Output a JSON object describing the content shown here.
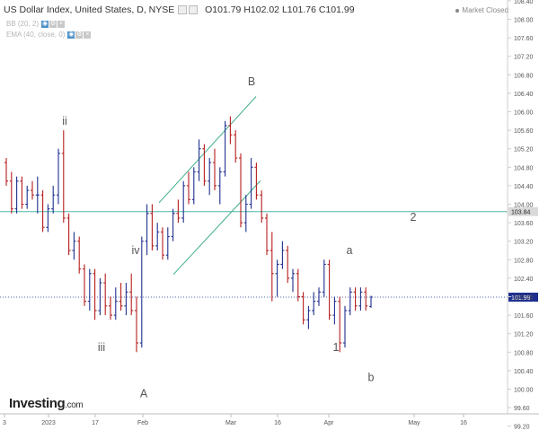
{
  "header": {
    "symbol": "US Dollar Index, United States, D, NYSE",
    "open_label": "O",
    "open": "101.79",
    "high_label": "H",
    "high": "102.02",
    "low_label": "L",
    "low": "101.76",
    "close_label": "C",
    "close": "101.99",
    "indicator_1": "BB (20, 2)",
    "indicator_2": "EMA (40, close, 0)",
    "market_status": "Market Closed"
  },
  "branding": {
    "logo_main": "Investing",
    "logo_suffix": ".com"
  },
  "colors": {
    "up_bar": "#1f2f8f",
    "down_bar": "#b71c1c",
    "channel": "#3fae8a",
    "hline": "#4fb7a8",
    "dotline": "#1f2f8f"
  },
  "chart_data": {
    "type": "ohlc-bar",
    "ylim": [
      99.0,
      109.1
    ],
    "y_ticks": [
      "99.20",
      "99.60",
      "100.00",
      "100.40",
      "100.80",
      "101.20",
      "101.60",
      "102.00",
      "102.40",
      "102.80",
      "103.20",
      "103.60",
      "104.00",
      "104.40",
      "104.80",
      "105.20",
      "105.60",
      "106.00",
      "106.40",
      "106.80",
      "107.20",
      "107.60",
      "108.00",
      "108.40",
      "108.80"
    ],
    "x_ticks": [
      "3",
      "2023",
      "17",
      "Feb",
      "Mar",
      "16",
      "Apr",
      "May",
      "16"
    ],
    "horizontal_level": {
      "value": 103.84,
      "label": "103.84"
    },
    "last_price": {
      "value": 101.99,
      "label": "101.99"
    },
    "wave_labels": [
      "ii",
      "iii",
      "iv",
      "A",
      "B",
      "1",
      "a",
      "b",
      "2"
    ],
    "channel": true,
    "bars": [
      [
        104.9,
        105.0,
        104.4,
        104.5
      ],
      [
        104.5,
        104.7,
        103.8,
        103.9
      ],
      [
        103.9,
        104.6,
        103.8,
        104.5
      ],
      [
        104.5,
        104.6,
        103.9,
        104.0
      ],
      [
        104.0,
        104.4,
        103.9,
        104.3
      ],
      [
        104.3,
        104.5,
        104.1,
        104.2
      ],
      [
        104.2,
        104.6,
        103.8,
        104.2
      ],
      [
        104.2,
        104.3,
        103.4,
        103.5
      ],
      [
        103.5,
        104.0,
        103.4,
        103.9
      ],
      [
        103.9,
        104.4,
        103.8,
        104.2
      ],
      [
        104.2,
        105.2,
        104.0,
        105.1
      ],
      [
        105.1,
        105.6,
        103.6,
        103.7
      ],
      [
        103.7,
        103.8,
        102.9,
        103.0
      ],
      [
        103.0,
        103.4,
        102.8,
        103.2
      ],
      [
        103.2,
        103.3,
        102.5,
        102.6
      ],
      [
        102.6,
        102.7,
        101.8,
        101.9
      ],
      [
        101.9,
        102.6,
        101.7,
        102.5
      ],
      [
        102.5,
        102.6,
        101.5,
        101.7
      ],
      [
        101.7,
        102.4,
        101.6,
        102.3
      ],
      [
        102.3,
        102.5,
        101.6,
        101.8
      ],
      [
        101.8,
        102.0,
        101.5,
        101.6
      ],
      [
        101.6,
        102.2,
        101.5,
        101.9
      ],
      [
        101.9,
        102.3,
        101.7,
        101.8
      ],
      [
        101.8,
        102.3,
        101.6,
        102.1
      ],
      [
        102.1,
        102.5,
        101.6,
        101.7
      ],
      [
        101.7,
        102.0,
        100.8,
        101.0
      ],
      [
        101.0,
        103.3,
        100.9,
        103.2
      ],
      [
        103.2,
        104.0,
        102.9,
        103.8
      ],
      [
        103.8,
        104.0,
        103.0,
        103.1
      ],
      [
        103.1,
        103.6,
        103.0,
        103.4
      ],
      [
        103.4,
        103.5,
        102.8,
        102.9
      ],
      [
        102.9,
        103.5,
        102.8,
        103.3
      ],
      [
        103.3,
        103.9,
        103.2,
        103.8
      ],
      [
        103.8,
        104.1,
        103.6,
        103.7
      ],
      [
        103.7,
        104.5,
        103.6,
        104.4
      ],
      [
        104.4,
        104.7,
        104.0,
        104.1
      ],
      [
        104.1,
        104.8,
        104.0,
        104.7
      ],
      [
        104.7,
        105.4,
        104.5,
        105.2
      ],
      [
        105.2,
        105.3,
        104.4,
        104.5
      ],
      [
        104.5,
        105.0,
        104.2,
        104.9
      ],
      [
        104.9,
        105.2,
        104.3,
        104.4
      ],
      [
        104.4,
        104.8,
        104.0,
        104.7
      ],
      [
        104.7,
        105.8,
        104.6,
        105.7
      ],
      [
        105.7,
        105.9,
        105.3,
        105.5
      ],
      [
        105.5,
        105.6,
        104.9,
        105.0
      ],
      [
        105.0,
        105.1,
        103.5,
        103.6
      ],
      [
        103.6,
        104.2,
        103.4,
        104.0
      ],
      [
        104.0,
        105.0,
        103.9,
        104.8
      ],
      [
        104.8,
        104.9,
        104.1,
        104.2
      ],
      [
        104.2,
        104.3,
        103.6,
        103.7
      ],
      [
        103.7,
        103.8,
        102.9,
        103.0
      ],
      [
        103.0,
        103.4,
        101.9,
        102.5
      ],
      [
        102.5,
        102.8,
        102.0,
        102.7
      ],
      [
        102.7,
        103.2,
        102.6,
        103.0
      ],
      [
        103.0,
        103.1,
        102.3,
        102.4
      ],
      [
        102.4,
        102.6,
        102.1,
        102.5
      ],
      [
        102.5,
        102.6,
        101.9,
        102.0
      ],
      [
        102.0,
        102.1,
        101.4,
        101.5
      ],
      [
        101.5,
        101.8,
        101.3,
        101.7
      ],
      [
        101.7,
        102.1,
        101.6,
        101.9
      ],
      [
        101.9,
        102.2,
        101.8,
        102.1
      ],
      [
        102.1,
        102.8,
        102.0,
        102.7
      ],
      [
        102.7,
        102.8,
        101.5,
        101.6
      ],
      [
        101.6,
        102.0,
        101.4,
        101.9
      ],
      [
        101.9,
        102.0,
        100.8,
        101.0
      ],
      [
        101.0,
        101.8,
        100.9,
        101.7
      ],
      [
        101.7,
        102.2,
        101.6,
        102.1
      ],
      [
        102.1,
        102.2,
        101.7,
        101.8
      ],
      [
        101.8,
        102.2,
        101.7,
        102.1
      ],
      [
        102.1,
        102.2,
        101.7,
        101.8
      ],
      [
        101.79,
        102.02,
        101.76,
        101.99
      ]
    ]
  }
}
